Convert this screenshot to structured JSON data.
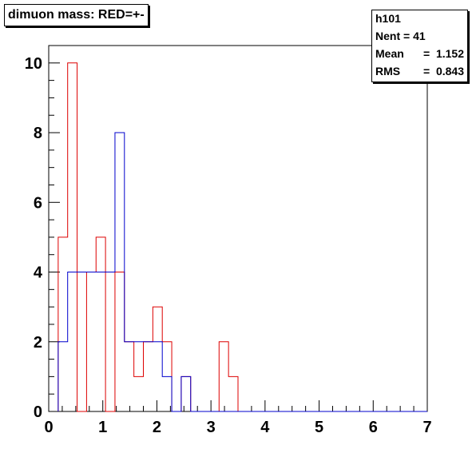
{
  "title": "dimuon mass: RED=+-",
  "stats": {
    "name": "h101",
    "rows": [
      {
        "key": "Nent",
        "sep": "=",
        "value": "41"
      },
      {
        "key": "Mean",
        "sep": "=",
        "value": "1.152"
      },
      {
        "key": "RMS",
        "sep": "=",
        "value": "0.843"
      }
    ]
  },
  "chart_data": {
    "type": "histogram",
    "xlim": [
      0,
      7
    ],
    "ylim": [
      0,
      10.5
    ],
    "x_ticks": [
      0,
      1,
      2,
      3,
      4,
      5,
      6,
      7
    ],
    "y_ticks": [
      0,
      2,
      4,
      6,
      8,
      10
    ],
    "grid": false,
    "series": [
      {
        "color": "#dd0000",
        "edges": [
          0.175,
          0.35,
          0.525,
          0.7,
          0.875,
          1.05,
          1.225,
          1.4,
          1.575,
          1.75,
          1.925,
          2.1,
          2.275,
          2.45,
          2.625,
          2.8,
          2.975,
          3.15,
          3.325,
          3.5
        ],
        "counts": [
          5,
          10,
          0,
          4,
          5,
          0,
          4,
          2,
          1,
          2,
          3,
          2,
          0,
          1,
          0,
          0,
          0,
          2,
          1
        ]
      },
      {
        "color": "#0000cc",
        "edges": [
          0.175,
          0.35,
          0.525,
          0.7,
          0.875,
          1.05,
          1.225,
          1.4,
          1.575,
          1.75,
          1.925,
          2.1,
          2.275,
          2.45,
          2.625,
          7.0
        ],
        "counts": [
          2,
          4,
          4,
          4,
          4,
          4,
          8,
          2,
          2,
          2,
          2,
          1,
          0,
          1,
          0
        ]
      }
    ]
  }
}
